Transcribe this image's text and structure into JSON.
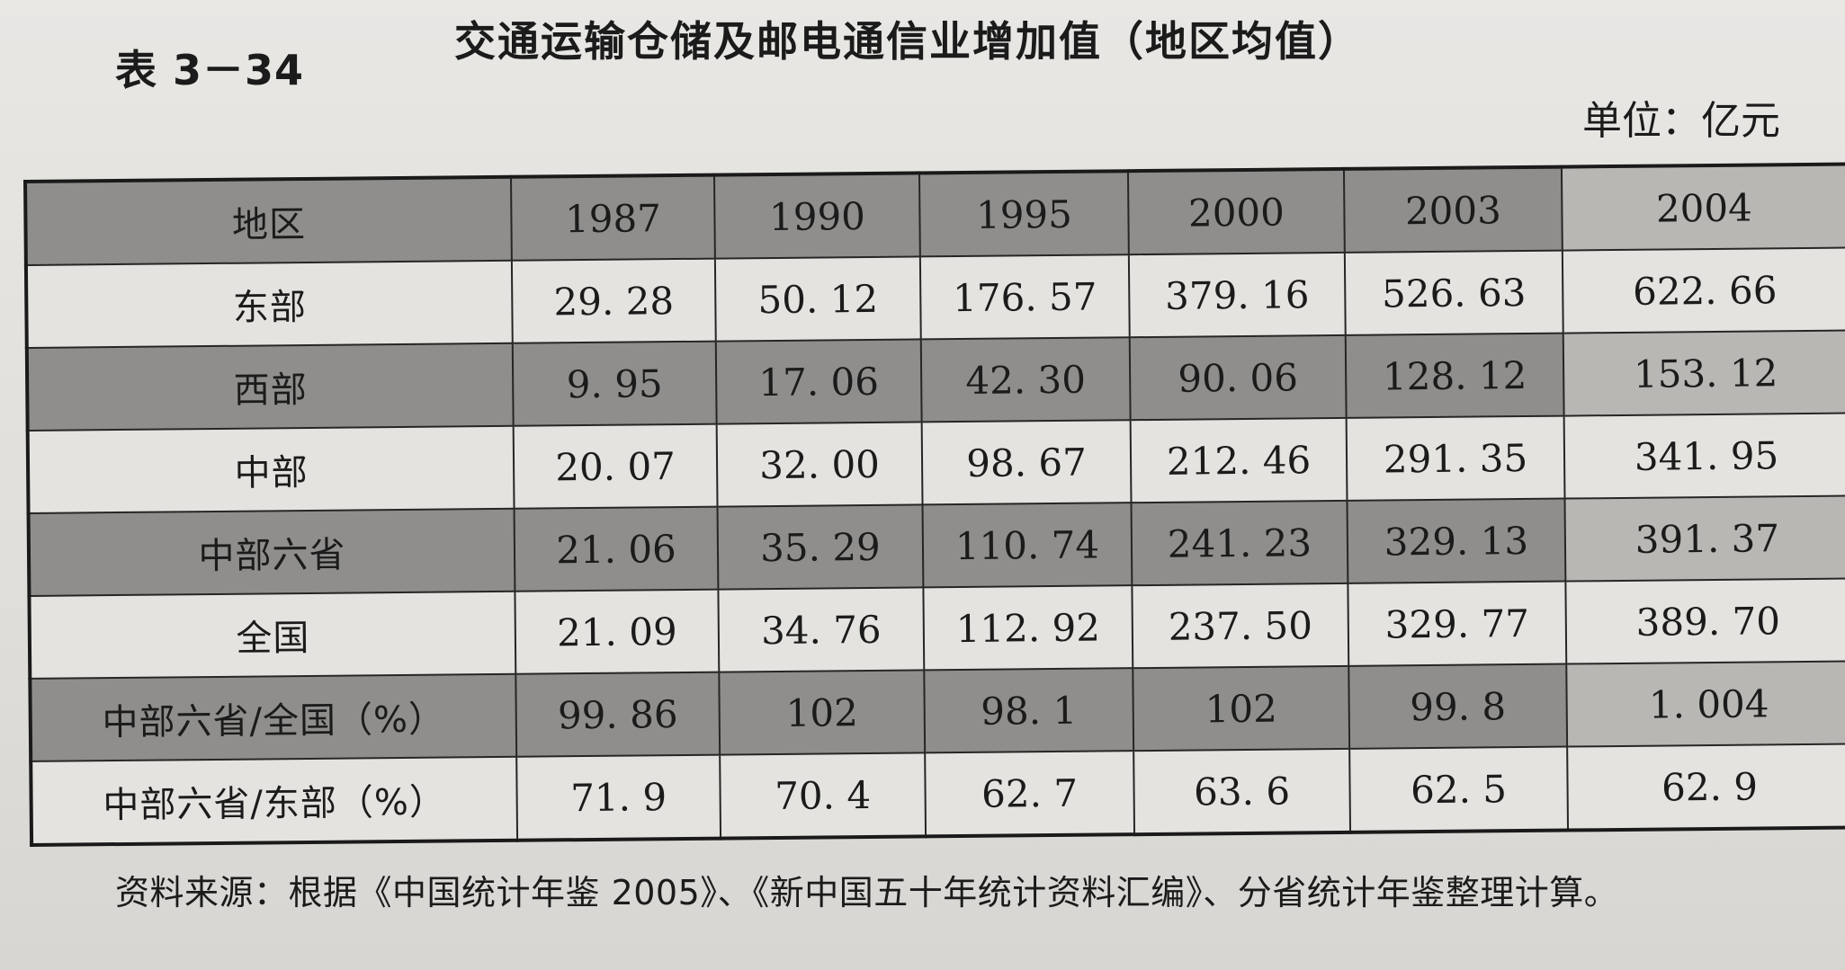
{
  "table_no": "表 3－34",
  "title": "交通运输仓储及邮电通信业增加值（地区均值）",
  "unit": "单位：亿元",
  "table": {
    "header": [
      "地区",
      "1987",
      "1990",
      "1995",
      "2000",
      "2003",
      "2004"
    ],
    "rows": [
      {
        "label": "东部",
        "values": [
          "29. 28",
          "50. 12",
          "176. 57",
          "379. 16",
          "526. 63",
          "622. 66"
        ]
      },
      {
        "label": "西部",
        "values": [
          "9. 95",
          "17. 06",
          "42. 30",
          "90. 06",
          "128. 12",
          "153. 12"
        ]
      },
      {
        "label": "中部",
        "values": [
          "20. 07",
          "32. 00",
          "98. 67",
          "212. 46",
          "291. 35",
          "341. 95"
        ]
      },
      {
        "label": "中部六省",
        "values": [
          "21. 06",
          "35. 29",
          "110. 74",
          "241. 23",
          "329. 13",
          "391. 37"
        ]
      },
      {
        "label": "全国",
        "values": [
          "21. 09",
          "34. 76",
          "112. 92",
          "237. 50",
          "329. 77",
          "389. 70"
        ]
      },
      {
        "label": "中部六省/全国（%）",
        "values": [
          "99. 86",
          "102",
          "98. 1",
          "102",
          "99. 8",
          "1. 004"
        ]
      },
      {
        "label": "中部六省/东部（%）",
        "values": [
          "71. 9",
          "70. 4",
          "62. 7",
          "63. 6",
          "62. 5",
          "62. 9"
        ]
      }
    ]
  },
  "source": "资料来源：根据《中国统计年鉴 2005》、《新中国五十年统计资料汇编》、分省统计年鉴整理计算。"
}
